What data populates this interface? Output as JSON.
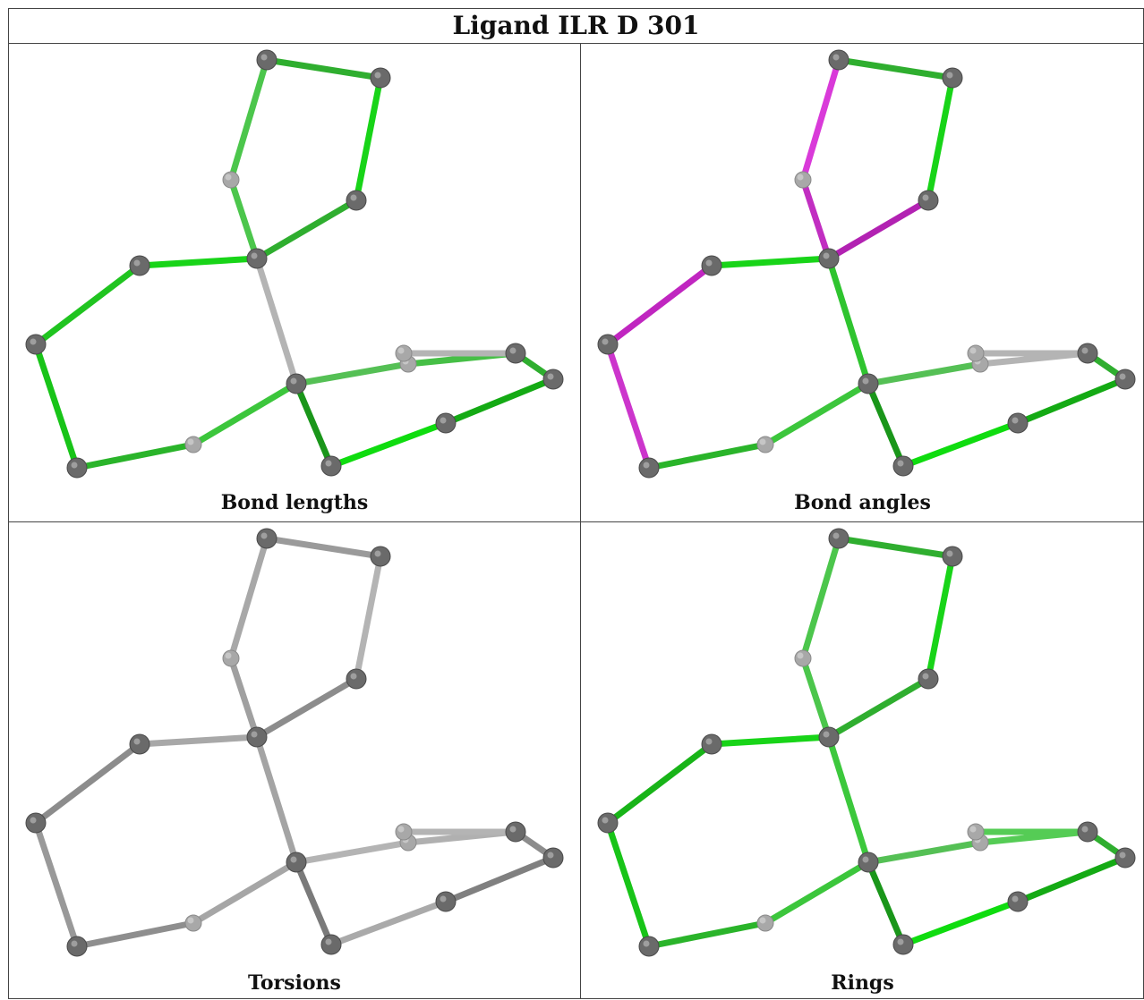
{
  "title": "Ligand ILR D 301",
  "panels": [
    {
      "caption": "Bond lengths",
      "bond_colors": [
        "#4cc64c",
        "#2fae2f",
        "#18d418",
        "#4cc64c",
        "#2fae2f",
        "#18d418",
        "#b4b4b4",
        "#20c420",
        "#18c418",
        "#2ab42a",
        "#3cc63c",
        "#55c055",
        "#46bf46",
        "#2fae2f",
        "#14aa14",
        "#0fdc0f",
        "#1a961a",
        "#b4b4b4",
        "#b4b4b4"
      ]
    },
    {
      "caption": "Bond angles",
      "bond_colors": [
        "#d93ad9",
        "#2fae2f",
        "#18d418",
        "#c12ec1",
        "#b222b2",
        "#18d418",
        "#2fc42f",
        "#c026c0",
        "#cc35cc",
        "#2ab42a",
        "#3cc63c",
        "#55c055",
        "#b4b4b4",
        "#2fae2f",
        "#14aa14",
        "#0fdc0f",
        "#1a961a",
        "#b4b4b4",
        "#b4b4b4"
      ]
    },
    {
      "caption": "Torsions",
      "bond_colors": [
        "#a8a8a8",
        "#9a9a9a",
        "#b4b4b4",
        "#a0a0a0",
        "#8c8c8c",
        "#a8a8a8",
        "#a4a4a4",
        "#8c8c8c",
        "#999999",
        "#8e8e8e",
        "#a6a6a6",
        "#b4b4b4",
        "#b0b0b0",
        "#8c8c8c",
        "#808080",
        "#aaaaaa",
        "#7a7a7a",
        "#b4b4b4",
        "#b4b4b4"
      ]
    },
    {
      "caption": "Rings",
      "bond_colors": [
        "#4cc64c",
        "#2fae2f",
        "#18d418",
        "#4cc64c",
        "#2fae2f",
        "#18d418",
        "#3cc83c",
        "#18b418",
        "#18c418",
        "#2ab42a",
        "#3cc63c",
        "#55c055",
        "#55cc55",
        "#2fae2f",
        "#14aa14",
        "#0fdc0f",
        "#1a961a",
        "#55cc55",
        "#55cc55"
      ]
    }
  ]
}
